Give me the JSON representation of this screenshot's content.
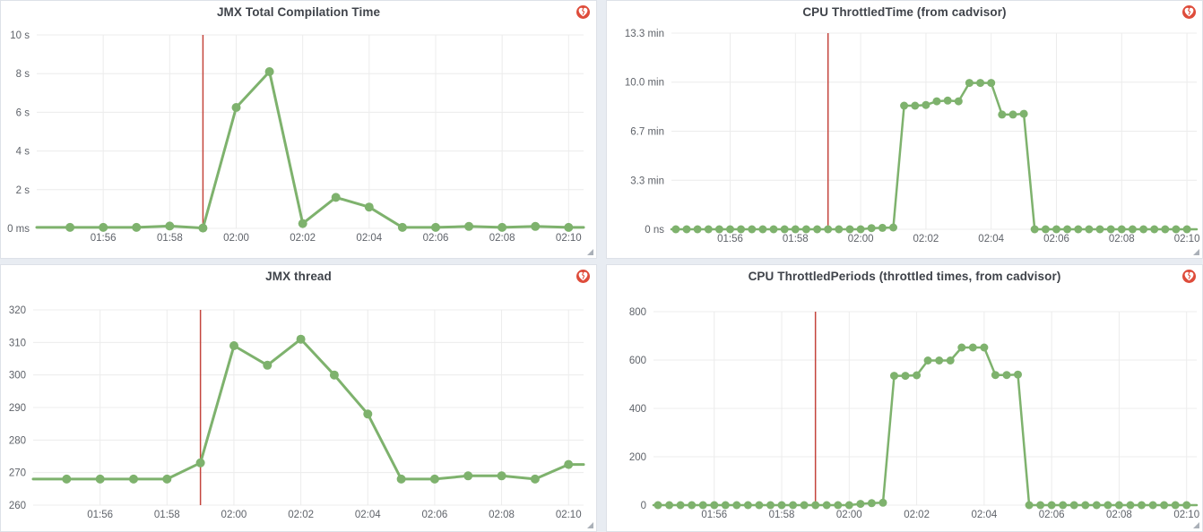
{
  "theme": {
    "line_green": "#7eb26d",
    "annotation_red": "#c4443c",
    "alert_icon_red": "#de4c3b",
    "panel_bg": "#ffffff",
    "dashboard_bg": "#e8ecf2",
    "grid_color": "#ececec",
    "tick_color": "#5f636a"
  },
  "chart_data": [
    {
      "type": "line",
      "title": "JMX Total Compilation Time",
      "legend_position": "none",
      "grid": true,
      "ylim": [
        0,
        10
      ],
      "y_ticks": [
        {
          "label": "0 ms",
          "value": 0
        },
        {
          "label": "2 s",
          "value": 2
        },
        {
          "label": "4 s",
          "value": 4
        },
        {
          "label": "6 s",
          "value": 6
        },
        {
          "label": "8 s",
          "value": 8
        },
        {
          "label": "10 s",
          "value": 10
        }
      ],
      "x_ticks": [
        "01:56",
        "01:58",
        "02:00",
        "02:02",
        "02:04",
        "02:06",
        "02:08",
        "02:10"
      ],
      "annotation": {
        "time": "01:59",
        "type": "alert-line"
      },
      "points": [
        [
          "01:55",
          0.05
        ],
        [
          "01:56",
          0.05
        ],
        [
          "01:57",
          0.05
        ],
        [
          "01:58",
          0.12
        ],
        [
          "01:59",
          0.02
        ],
        [
          "02:00",
          6.25
        ],
        [
          "02:01",
          8.1
        ],
        [
          "02:02",
          0.25
        ],
        [
          "02:03",
          1.6
        ],
        [
          "02:04",
          1.1
        ],
        [
          "02:05",
          0.05
        ],
        [
          "02:06",
          0.05
        ],
        [
          "02:07",
          0.1
        ],
        [
          "02:08",
          0.05
        ],
        [
          "02:09",
          0.1
        ],
        [
          "02:10",
          0.05
        ]
      ]
    },
    {
      "type": "line",
      "title": "CPU ThrottledTime (from cadvisor)",
      "legend_position": "none",
      "grid": true,
      "ylim": [
        0,
        13.333
      ],
      "y_ticks": [
        {
          "label": "0 ns",
          "value": 0
        },
        {
          "label": "3.3 min",
          "value": 3.333
        },
        {
          "label": "6.7 min",
          "value": 6.667
        },
        {
          "label": "10.0 min",
          "value": 10
        },
        {
          "label": "13.3 min",
          "value": 13.333
        }
      ],
      "x_ticks": [
        "01:56",
        "01:58",
        "02:00",
        "02:02",
        "02:04",
        "02:06",
        "02:08",
        "02:10"
      ],
      "annotation": {
        "time": "01:59",
        "type": "alert-line"
      },
      "points": [
        [
          "01:54:20",
          0
        ],
        [
          "01:54:40",
          0
        ],
        [
          "01:55:00",
          0
        ],
        [
          "01:55:20",
          0
        ],
        [
          "01:55:40",
          0
        ],
        [
          "01:56:00",
          0
        ],
        [
          "01:56:20",
          0
        ],
        [
          "01:56:40",
          0
        ],
        [
          "01:57:00",
          0
        ],
        [
          "01:57:20",
          0
        ],
        [
          "01:57:40",
          0
        ],
        [
          "01:58:00",
          0
        ],
        [
          "01:58:20",
          0
        ],
        [
          "01:58:40",
          0
        ],
        [
          "01:59:00",
          0
        ],
        [
          "01:59:20",
          0
        ],
        [
          "01:59:40",
          0
        ],
        [
          "02:00:00",
          0
        ],
        [
          "02:00:20",
          0.08
        ],
        [
          "02:00:40",
          0.1
        ],
        [
          "02:01:00",
          0.12
        ],
        [
          "02:01:20",
          8.4
        ],
        [
          "02:01:40",
          8.4
        ],
        [
          "02:02:00",
          8.45
        ],
        [
          "02:02:20",
          8.7
        ],
        [
          "02:02:40",
          8.75
        ],
        [
          "02:03:00",
          8.7
        ],
        [
          "02:03:20",
          9.95
        ],
        [
          "02:03:40",
          9.95
        ],
        [
          "02:04:00",
          9.95
        ],
        [
          "02:04:20",
          7.8
        ],
        [
          "02:04:40",
          7.8
        ],
        [
          "02:05:00",
          7.85
        ],
        [
          "02:05:20",
          0
        ],
        [
          "02:05:40",
          0
        ],
        [
          "02:06:00",
          0
        ],
        [
          "02:06:20",
          0
        ],
        [
          "02:06:40",
          0
        ],
        [
          "02:07:00",
          0
        ],
        [
          "02:07:20",
          0
        ],
        [
          "02:07:40",
          0
        ],
        [
          "02:08:00",
          0
        ],
        [
          "02:08:20",
          0
        ],
        [
          "02:08:40",
          0
        ],
        [
          "02:09:00",
          0
        ],
        [
          "02:09:20",
          0
        ],
        [
          "02:09:40",
          0
        ],
        [
          "02:10:00",
          0
        ]
      ]
    },
    {
      "type": "line",
      "title": "JMX thread",
      "legend_position": "none",
      "grid": true,
      "ylim": [
        260,
        320
      ],
      "y_ticks": [
        {
          "label": "260",
          "value": 260
        },
        {
          "label": "270",
          "value": 270
        },
        {
          "label": "280",
          "value": 280
        },
        {
          "label": "290",
          "value": 290
        },
        {
          "label": "300",
          "value": 300
        },
        {
          "label": "310",
          "value": 310
        },
        {
          "label": "320",
          "value": 320
        }
      ],
      "x_ticks": [
        "01:56",
        "01:58",
        "02:00",
        "02:02",
        "02:04",
        "02:06",
        "02:08",
        "02:10"
      ],
      "annotation": {
        "time": "01:59",
        "type": "alert-line"
      },
      "points": [
        [
          "01:55",
          268
        ],
        [
          "01:56",
          268
        ],
        [
          "01:57",
          268
        ],
        [
          "01:58",
          268
        ],
        [
          "01:59",
          273
        ],
        [
          "02:00",
          309
        ],
        [
          "02:01",
          303
        ],
        [
          "02:02",
          311
        ],
        [
          "02:03",
          300
        ],
        [
          "02:04",
          288
        ],
        [
          "02:05",
          268
        ],
        [
          "02:06",
          268
        ],
        [
          "02:07",
          269
        ],
        [
          "02:08",
          269
        ],
        [
          "02:09",
          268
        ],
        [
          "02:10",
          272.5
        ]
      ]
    },
    {
      "type": "line",
      "title": "CPU ThrottledPeriods (throttled times, from cadvisor)",
      "legend_position": "none",
      "grid": true,
      "ylim": [
        0,
        800
      ],
      "y_ticks": [
        {
          "label": "0",
          "value": 0
        },
        {
          "label": "200",
          "value": 200
        },
        {
          "label": "400",
          "value": 400
        },
        {
          "label": "600",
          "value": 600
        },
        {
          "label": "800",
          "value": 800
        }
      ],
      "x_ticks": [
        "01:56",
        "01:58",
        "02:00",
        "02:02",
        "02:04",
        "02:06",
        "02:08",
        "02:10"
      ],
      "annotation": {
        "time": "01:59",
        "type": "alert-line"
      },
      "points": [
        [
          "01:54:20",
          0
        ],
        [
          "01:54:40",
          0
        ],
        [
          "01:55:00",
          0
        ],
        [
          "01:55:20",
          0
        ],
        [
          "01:55:40",
          0
        ],
        [
          "01:56:00",
          0
        ],
        [
          "01:56:20",
          0
        ],
        [
          "01:56:40",
          0
        ],
        [
          "01:57:00",
          0
        ],
        [
          "01:57:20",
          0
        ],
        [
          "01:57:40",
          0
        ],
        [
          "01:58:00",
          0
        ],
        [
          "01:58:20",
          0
        ],
        [
          "01:58:40",
          0
        ],
        [
          "01:59:00",
          0
        ],
        [
          "01:59:20",
          0
        ],
        [
          "01:59:40",
          0
        ],
        [
          "02:00:00",
          0
        ],
        [
          "02:00:20",
          5
        ],
        [
          "02:00:40",
          8
        ],
        [
          "02:01:00",
          10
        ],
        [
          "02:01:20",
          535
        ],
        [
          "02:01:40",
          535
        ],
        [
          "02:02:00",
          537
        ],
        [
          "02:02:20",
          598
        ],
        [
          "02:02:40",
          598
        ],
        [
          "02:03:00",
          598
        ],
        [
          "02:03:20",
          652
        ],
        [
          "02:03:40",
          652
        ],
        [
          "02:04:00",
          652
        ],
        [
          "02:04:20",
          538
        ],
        [
          "02:04:40",
          538
        ],
        [
          "02:05:00",
          540
        ],
        [
          "02:05:20",
          0
        ],
        [
          "02:05:40",
          0
        ],
        [
          "02:06:00",
          0
        ],
        [
          "02:06:20",
          0
        ],
        [
          "02:06:40",
          0
        ],
        [
          "02:07:00",
          0
        ],
        [
          "02:07:20",
          0
        ],
        [
          "02:07:40",
          0
        ],
        [
          "02:08:00",
          0
        ],
        [
          "02:08:20",
          0
        ],
        [
          "02:08:40",
          0
        ],
        [
          "02:09:00",
          0
        ],
        [
          "02:09:20",
          0
        ],
        [
          "02:09:40",
          0
        ],
        [
          "02:10:00",
          0
        ]
      ]
    }
  ]
}
